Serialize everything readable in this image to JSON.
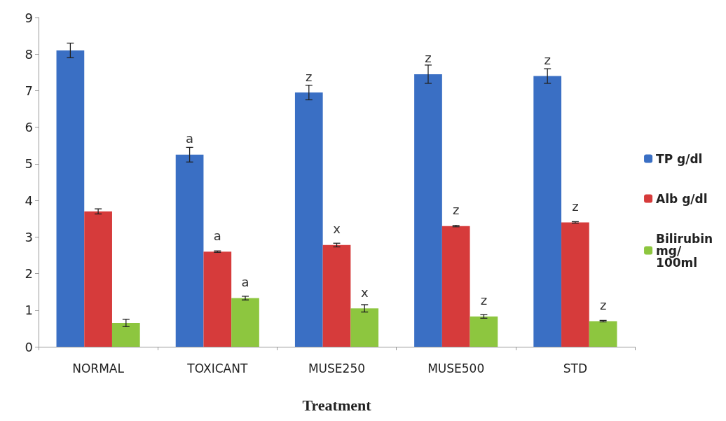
{
  "chart_data": {
    "type": "bar",
    "xlabel": "Treatment",
    "categories": [
      "NORMAL",
      "TOXICANT",
      "MUSE250",
      "MUSE500",
      "STD"
    ],
    "series": [
      {
        "name": "TP g/dl",
        "color": "#3a6fc4",
        "values": [
          8.1,
          5.25,
          6.95,
          7.45,
          7.4
        ],
        "errors": [
          0.2,
          0.2,
          0.2,
          0.25,
          0.2
        ],
        "value_labels": [
          null,
          "a",
          "z",
          "z",
          "z"
        ]
      },
      {
        "name": "Alb g/dl",
        "color": "#d63b3b",
        "values": [
          3.7,
          2.6,
          2.78,
          3.3,
          3.4
        ],
        "errors": [
          0.07,
          0.02,
          0.05,
          0.02,
          0.02
        ],
        "value_labels": [
          null,
          "a",
          "x",
          "z",
          "z"
        ]
      },
      {
        "name": "Bilirubin mg/100ml",
        "color": "#8dc63f",
        "values": [
          0.65,
          1.33,
          1.05,
          0.83,
          0.7
        ],
        "errors": [
          0.1,
          0.05,
          0.1,
          0.05,
          0.02
        ],
        "value_labels": [
          null,
          "a",
          "x",
          "z",
          "z"
        ]
      }
    ],
    "ylim": [
      0,
      9
    ],
    "yticks": [
      0,
      1,
      2,
      3,
      4,
      5,
      6,
      7,
      8,
      9
    ],
    "grid": false,
    "legend": "right"
  }
}
